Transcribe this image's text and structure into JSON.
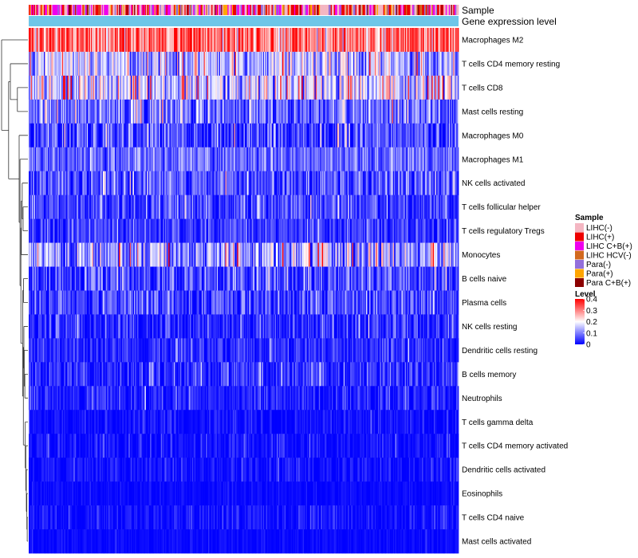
{
  "chart_data": {
    "type": "heatmap",
    "annotations": [
      {
        "name": "Sample"
      },
      {
        "name": "Gene expression level"
      }
    ],
    "rows": [
      {
        "label": "Macrophages M2",
        "mean": 0.31,
        "sd": 0.08
      },
      {
        "label": "T cells CD4 memory resting",
        "mean": 0.14,
        "sd": 0.07
      },
      {
        "label": "T cells CD8",
        "mean": 0.16,
        "sd": 0.08
      },
      {
        "label": "Mast cells resting",
        "mean": 0.09,
        "sd": 0.06
      },
      {
        "label": "Macrophages M0",
        "mean": 0.05,
        "sd": 0.06
      },
      {
        "label": "Macrophages M1",
        "mean": 0.08,
        "sd": 0.04
      },
      {
        "label": "NK cells activated",
        "mean": 0.06,
        "sd": 0.05
      },
      {
        "label": "T cells follicular helper",
        "mean": 0.05,
        "sd": 0.04
      },
      {
        "label": "T cells regulatory  Tregs",
        "mean": 0.04,
        "sd": 0.04
      },
      {
        "label": "Monocytes",
        "mean": 0.12,
        "sd": 0.08
      },
      {
        "label": "B cells naive",
        "mean": 0.05,
        "sd": 0.05
      },
      {
        "label": "Plasma cells",
        "mean": 0.05,
        "sd": 0.05
      },
      {
        "label": "NK cells resting",
        "mean": 0.03,
        "sd": 0.04
      },
      {
        "label": "Dendritic cells resting",
        "mean": 0.03,
        "sd": 0.03
      },
      {
        "label": "B cells memory",
        "mean": 0.03,
        "sd": 0.04
      },
      {
        "label": "Neutrophils",
        "mean": 0.02,
        "sd": 0.03
      },
      {
        "label": "T cells gamma delta",
        "mean": 0.01,
        "sd": 0.02
      },
      {
        "label": "T cells CD4 memory activated",
        "mean": 0.01,
        "sd": 0.02
      },
      {
        "label": "Dendritic cells activated",
        "mean": 0.01,
        "sd": 0.02
      },
      {
        "label": "Eosinophils",
        "mean": 0.005,
        "sd": 0.01
      },
      {
        "label": "T cells CD4 naive",
        "mean": 0.01,
        "sd": 0.02
      },
      {
        "label": "Mast cells activated",
        "mean": 0.005,
        "sd": 0.01
      }
    ],
    "n_samples": 400,
    "legend_sample": {
      "title": "Sample",
      "items": [
        {
          "label": "LIHC(-)",
          "color": "#f4b6c2"
        },
        {
          "label": "LIHC(+)",
          "color": "#ee0000"
        },
        {
          "label": "LIHC C+B(+)",
          "color": "#ee00ee"
        },
        {
          "label": "LIHC HCV(-)",
          "color": "#d2691e"
        },
        {
          "label": "Para(-)",
          "color": "#9370db"
        },
        {
          "label": "Para(+)",
          "color": "#ffa500"
        },
        {
          "label": "Para C+B(+)",
          "color": "#8b0000"
        }
      ]
    },
    "legend_level": {
      "title": "Level",
      "ticks": [
        "0.4",
        "0.3",
        "0.2",
        "0.1",
        "0"
      ],
      "range": [
        0,
        0.4
      ],
      "colors": {
        "low": "#0000ff",
        "mid": "#ffffff",
        "high": "#ff0000"
      }
    },
    "expression_bar_color": "#6ec6e8"
  }
}
